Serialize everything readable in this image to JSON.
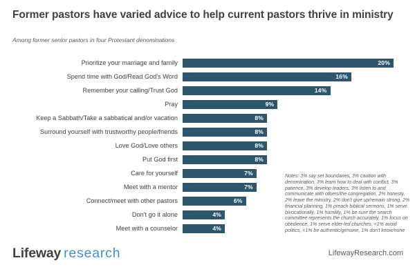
{
  "header": {
    "title": "Former pastors have varied advice to help current pastors thrive in ministry",
    "subtitle": "Among former senior pastors in four Protestant denominations"
  },
  "chart_data": {
    "type": "bar",
    "orientation": "horizontal",
    "title": "Former pastors have varied advice to help current pastors thrive in ministry",
    "subtitle": "Among former senior pastors in four Protestant denominations",
    "categories": [
      "Prioritize your marriage and family",
      "Spend time with God/Read God's Word",
      "Remember your calling/Trust God",
      "Pray",
      "Keep a Sabbath/Take a sabbatical and/or vacation",
      "Surround yourself with trustworthy people/friends",
      "Love God/Love others",
      "Put God first",
      "Care for yourself",
      "Meet with a mentor",
      "Connect/meet with other pastors",
      "Don't go it alone",
      "Meet with a counselor"
    ],
    "values": [
      20,
      16,
      14,
      9,
      8,
      8,
      8,
      8,
      7,
      7,
      6,
      4,
      4
    ],
    "value_labels": [
      "20%",
      "16%",
      "14%",
      "9%",
      "8%",
      "8%",
      "8%",
      "8%",
      "7%",
      "7%",
      "6%",
      "4%",
      "4%"
    ],
    "xlim": [
      0,
      20
    ],
    "grid": false,
    "legend": null,
    "bar_color": "#2d566e",
    "value_label_color": "#ffffff"
  },
  "notes": "Notes: 3% say set boundaries, 3% caution with denomination, 3% learn how to deal with conflict, 3% patience, 3% develop leaders, 3% listen to and communicate with others/the congregation, 2% honesty, 2% leave the ministry, 2% don't give up/remain strong, 2% financial planning, 1% preach biblical sermons, 1% serve bivocationally, 1% humility, 1% be sure the search committee represents the church accurately, 1% focus on obedience, 1% serve elder-led churches, <1% avoid politics, <1% be authentic/genuine, 1% don't know/none",
  "footer": {
    "logo_primary": "Lifeway",
    "logo_secondary": "research",
    "website": "LifewayResearch.com"
  },
  "colors": {
    "bar": "#2d566e",
    "title_text": "#414042",
    "muted_text": "#58595b",
    "logo_blue": "#4191c5",
    "background": "#ffffff"
  }
}
